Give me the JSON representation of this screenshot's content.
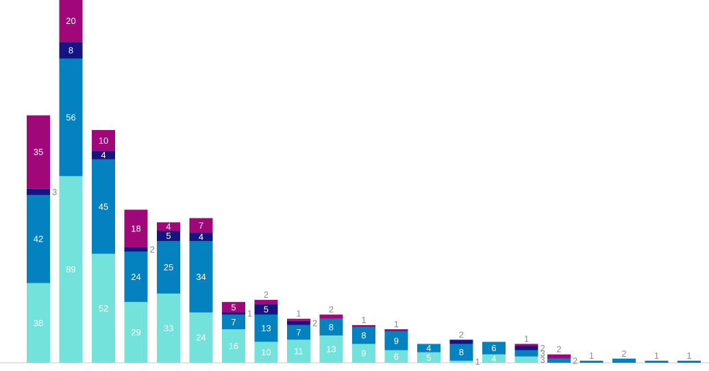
{
  "chart_data": {
    "type": "bar",
    "stacked": true,
    "title": "",
    "xlabel": "",
    "ylabel": "",
    "ylim": [
      0,
      173
    ],
    "grid": false,
    "legend": "none",
    "categories": [
      "",
      "",
      "",
      "",
      "",
      "",
      "",
      "",
      "",
      "",
      "",
      "",
      "",
      "",
      "",
      "",
      "",
      "",
      "",
      "",
      "",
      ""
    ],
    "series": [
      {
        "color": "#72e2da",
        "values": [
          38,
          89,
          52,
          29,
          33,
          24,
          16,
          10,
          11,
          13,
          9,
          6,
          5,
          1,
          4,
          3,
          0,
          0,
          0,
          0,
          0,
          0
        ]
      },
      {
        "color": "#0382bf",
        "values": [
          42,
          56,
          45,
          24,
          25,
          34,
          7,
          13,
          7,
          8,
          8,
          9,
          4,
          8,
          6,
          3,
          2,
          1,
          2,
          1,
          1,
          1
        ]
      },
      {
        "color": "#141482",
        "values": [
          3,
          8,
          4,
          2,
          5,
          4,
          1,
          5,
          2,
          0,
          0,
          0,
          0,
          2,
          0,
          2,
          0,
          0,
          0,
          0,
          0,
          0
        ]
      },
      {
        "color": "#a0087a",
        "values": [
          35,
          20,
          10,
          18,
          4,
          7,
          5,
          2,
          1,
          2,
          1,
          1,
          0,
          0,
          0,
          1,
          2,
          0,
          0,
          0,
          0,
          0
        ]
      }
    ]
  }
}
